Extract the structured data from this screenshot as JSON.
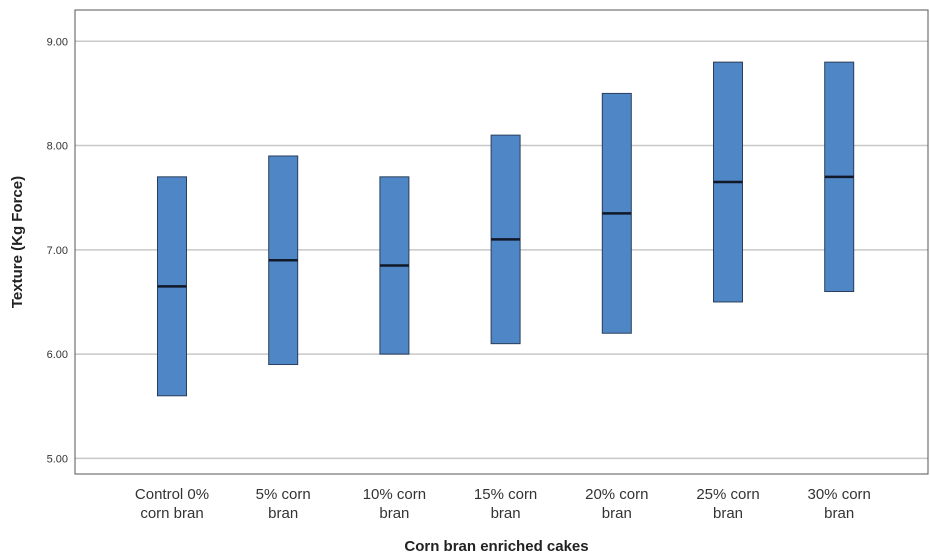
{
  "chart_data": {
    "type": "bar",
    "subtype": "range",
    "title": "",
    "xlabel": "Corn bran enriched cakes",
    "ylabel": "Texture (Kg Force)",
    "ylim": [
      4.85,
      9.3
    ],
    "yticks": [
      "5.00",
      "6.00",
      "7.00",
      "8.00",
      "9.00"
    ],
    "grid": true,
    "bar_color": "#4f86c6",
    "categories": [
      [
        "Control 0%",
        "corn bran"
      ],
      [
        "5% corn",
        "bran"
      ],
      [
        "10% corn",
        "bran"
      ],
      [
        "15% corn",
        "bran"
      ],
      [
        "20% corn",
        "bran"
      ],
      [
        "25% corn",
        "bran"
      ],
      [
        "30% corn",
        "bran"
      ]
    ],
    "series": [
      {
        "min": 5.6,
        "median": 6.65,
        "max": 7.7
      },
      {
        "min": 5.9,
        "median": 6.9,
        "max": 7.9
      },
      {
        "min": 6.0,
        "median": 6.85,
        "max": 7.7
      },
      {
        "min": 6.1,
        "median": 7.1,
        "max": 8.1
      },
      {
        "min": 6.2,
        "median": 7.35,
        "max": 8.5
      },
      {
        "min": 6.5,
        "median": 7.65,
        "max": 8.8
      },
      {
        "min": 6.6,
        "median": 7.7,
        "max": 8.8
      }
    ]
  }
}
